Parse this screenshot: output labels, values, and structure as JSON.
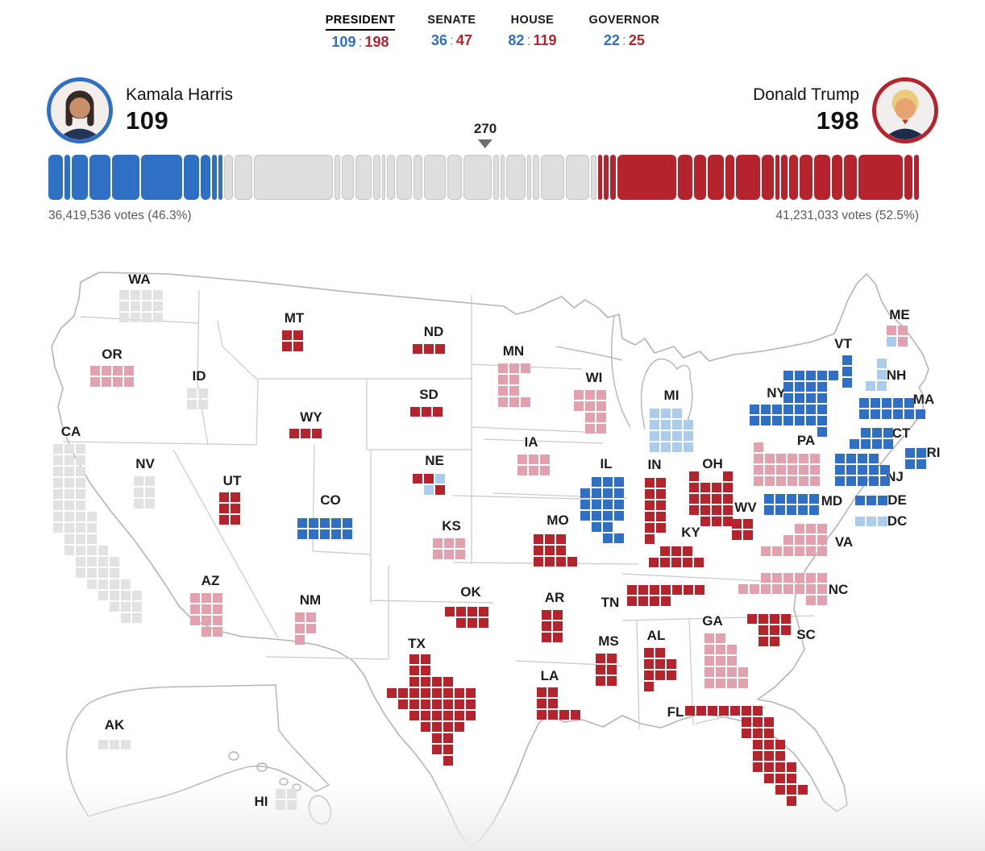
{
  "nav": {
    "tabs": [
      {
        "id": "president",
        "label": "PRESIDENT",
        "dem": "109",
        "gop": "198",
        "active": true
      },
      {
        "id": "senate",
        "label": "SENATE",
        "dem": "36",
        "gop": "47",
        "active": false
      },
      {
        "id": "house",
        "label": "HOUSE",
        "dem": "82",
        "gop": "119",
        "active": false
      },
      {
        "id": "governor",
        "label": "GOVERNOR",
        "dem": "22",
        "gop": "25",
        "active": false
      }
    ]
  },
  "candidates": {
    "dem": {
      "name": "Kamala Harris",
      "ev": "109"
    },
    "gop": {
      "name": "Donald Trump",
      "ev": "198"
    }
  },
  "bar": {
    "threshold_label": "270",
    "dem_votes": "36,419,536 votes (46.3%)",
    "gop_votes": "41,231,033 votes (52.5%)",
    "segments": [
      {
        "party": "dem",
        "ev": 10
      },
      {
        "party": "dem",
        "ev": 4
      },
      {
        "party": "dem",
        "ev": 11
      },
      {
        "party": "dem",
        "ev": 14
      },
      {
        "party": "dem",
        "ev": 19
      },
      {
        "party": "dem",
        "ev": 28
      },
      {
        "party": "dem",
        "ev": 10
      },
      {
        "party": "dem",
        "ev": 7
      },
      {
        "party": "dem",
        "ev": 3
      },
      {
        "party": "dem",
        "ev": 3
      },
      {
        "party": "none",
        "ev": 6
      },
      {
        "party": "none",
        "ev": 12
      },
      {
        "party": "none",
        "ev": 54
      },
      {
        "party": "none",
        "ev": 4
      },
      {
        "party": "none",
        "ev": 8
      },
      {
        "party": "none",
        "ev": 11
      },
      {
        "party": "none",
        "ev": 5
      },
      {
        "party": "none",
        "ev": 2
      },
      {
        "party": "none",
        "ev": 6
      },
      {
        "party": "none",
        "ev": 10
      },
      {
        "party": "none",
        "ev": 6
      },
      {
        "party": "none",
        "ev": 15
      },
      {
        "party": "none",
        "ev": 10
      },
      {
        "party": "none",
        "ev": 19
      },
      {
        "party": "none",
        "ev": 4
      },
      {
        "party": "none",
        "ev": 3
      },
      {
        "party": "none",
        "ev": 13
      },
      {
        "party": "none",
        "ev": 3
      },
      {
        "party": "none",
        "ev": 4
      },
      {
        "party": "none",
        "ev": 16
      },
      {
        "party": "none",
        "ev": 16
      },
      {
        "party": "none",
        "ev": 4
      },
      {
        "party": "gop",
        "ev": 3
      },
      {
        "party": "gop",
        "ev": 3
      },
      {
        "party": "gop",
        "ev": 4
      },
      {
        "party": "gop",
        "ev": 40
      },
      {
        "party": "gop",
        "ev": 10
      },
      {
        "party": "gop",
        "ev": 8
      },
      {
        "party": "gop",
        "ev": 11
      },
      {
        "party": "gop",
        "ev": 6
      },
      {
        "party": "gop",
        "ev": 17
      },
      {
        "party": "gop",
        "ev": 8
      },
      {
        "party": "gop",
        "ev": 3
      },
      {
        "party": "gop",
        "ev": 4
      },
      {
        "party": "gop",
        "ev": 6
      },
      {
        "party": "gop",
        "ev": 9
      },
      {
        "party": "gop",
        "ev": 11
      },
      {
        "party": "gop",
        "ev": 7
      },
      {
        "party": "gop",
        "ev": 9
      },
      {
        "party": "gop",
        "ev": 30
      },
      {
        "party": "gop",
        "ev": 6
      },
      {
        "party": "gop",
        "ev": 3
      }
    ]
  },
  "colors": {
    "dem": "#2f6fc4",
    "gop": "#b5232d",
    "dem_lean": "#abccea",
    "gop_lean": "#e2a1ae",
    "none": "#e2e2e2",
    "bar_none": "#dedede",
    "colon": "#9a9a9a"
  },
  "chart_data": {
    "type": "cartogram",
    "title": "2024 U.S. presidential election electoral college map",
    "ev_to_win": 270,
    "total_ev": 538,
    "candidates": [
      {
        "name": "Kamala Harris",
        "party": "dem",
        "electoral_votes": 109,
        "popular_votes": "36,419,536",
        "popular_pct": 46.3
      },
      {
        "name": "Donald Trump",
        "party": "gop",
        "electoral_votes": 198,
        "popular_votes": "41,231,033",
        "popular_pct": 52.5
      }
    ],
    "other_races": [
      {
        "race": "SENATE",
        "dem": 36,
        "gop": 47
      },
      {
        "race": "HOUSE",
        "dem": 82,
        "gop": 119
      },
      {
        "race": "GOVERNOR",
        "dem": 22,
        "gop": 25
      }
    ],
    "legend_note": "square colors: R=Trump win, r=Trump leading, B=Harris win, b=Harris leading, G=no result",
    "states": [
      {
        "abbr": "WA",
        "ev": 12,
        "status": "none",
        "label": [
          173,
          347
        ],
        "grid": [
          148,
          360
        ],
        "rows": [
          "GGGG",
          "GGGG",
          "GGGG"
        ]
      },
      {
        "abbr": "OR",
        "ev": 8,
        "status": "gop-lean",
        "label": [
          139,
          440
        ],
        "grid": [
          112,
          454
        ],
        "rows": [
          "rrrr",
          "rrrr"
        ]
      },
      {
        "abbr": "CA",
        "ev": 54,
        "status": "none",
        "label": [
          88,
          536
        ],
        "grid": [
          66,
          551
        ],
        "rows": [
          "GGG",
          "GGG",
          "GGG",
          "GGG",
          "GGG",
          "GGG",
          "GGGG",
          "GGGG",
          ".GGG",
          ".GGGG",
          "..GGGG",
          "..GGGG",
          "...GGGG",
          "....GGGG",
          ".....GGG",
          "......GG"
        ]
      },
      {
        "abbr": "NV",
        "ev": 6,
        "status": "none",
        "label": [
          180,
          576
        ],
        "grid": [
          166,
          591
        ],
        "rows": [
          "GG",
          "GG",
          "GG"
        ]
      },
      {
        "abbr": "ID",
        "ev": 4,
        "status": "none",
        "label": [
          247,
          467
        ],
        "grid": [
          232,
          482
        ],
        "rows": [
          "GG",
          "GG"
        ]
      },
      {
        "abbr": "MT",
        "ev": 4,
        "status": "gop",
        "label": [
          365,
          395
        ],
        "grid": [
          350,
          410
        ],
        "rows": [
          "RR",
          "RR"
        ]
      },
      {
        "abbr": "WY",
        "ev": 3,
        "status": "gop",
        "label": [
          386,
          518
        ],
        "grid": [
          359,
          532
        ],
        "rows": [
          "RRR"
        ]
      },
      {
        "abbr": "UT",
        "ev": 6,
        "status": "gop",
        "label": [
          288,
          597
        ],
        "grid": [
          272,
          611
        ],
        "rows": [
          "RR",
          "RR",
          "RR"
        ]
      },
      {
        "abbr": "AZ",
        "ev": 11,
        "status": "gop-lean",
        "label": [
          261,
          721
        ],
        "grid": [
          236,
          736
        ],
        "rows": [
          "rrr",
          "rrr",
          "rrr",
          ".rr"
        ]
      },
      {
        "abbr": "NM",
        "ev": 5,
        "status": "gop-lean",
        "label": [
          385,
          745
        ],
        "grid": [
          366,
          760
        ],
        "rows": [
          "rr",
          "rr",
          "r"
        ]
      },
      {
        "abbr": "CO",
        "ev": 10,
        "status": "dem",
        "label": [
          410,
          621
        ],
        "grid": [
          369,
          643
        ],
        "rows": [
          "BBBBB",
          "BBBBB"
        ]
      },
      {
        "abbr": "ND",
        "ev": 3,
        "status": "gop",
        "label": [
          538,
          412
        ],
        "grid": [
          512,
          427
        ],
        "rows": [
          "RRR"
        ]
      },
      {
        "abbr": "SD",
        "ev": 3,
        "status": "gop",
        "label": [
          532,
          490
        ],
        "grid": [
          509,
          505
        ],
        "rows": [
          "RRR"
        ]
      },
      {
        "abbr": "NE",
        "ev": 5,
        "status": "split",
        "label": [
          539,
          572
        ],
        "grid": [
          512,
          588
        ],
        "rows": [
          "RRb",
          ".bR"
        ]
      },
      {
        "abbr": "KS",
        "ev": 6,
        "status": "gop-lean",
        "label": [
          560,
          653
        ],
        "grid": [
          537,
          668
        ],
        "rows": [
          "rrr",
          "rrr"
        ]
      },
      {
        "abbr": "OK",
        "ev": 7,
        "status": "gop",
        "label": [
          584,
          735
        ],
        "grid": [
          552,
          753
        ],
        "rows": [
          "RRRR",
          ".RRR"
        ]
      },
      {
        "abbr": "TX",
        "ev": 40,
        "status": "gop",
        "label": [
          517,
          799
        ],
        "grid": [
          480,
          812
        ],
        "rows": [
          "..RR",
          "..RR",
          "..RRRR",
          "RRRRRRRR",
          ".RRRRRRR",
          "..RRRRRR",
          "...RRRR",
          "....RR",
          "....RR",
          ".....R"
        ]
      },
      {
        "abbr": "MN",
        "ev": 10,
        "status": "gop-lean",
        "label": [
          637,
          436
        ],
        "grid": [
          618,
          451
        ],
        "rows": [
          "rrr",
          "rr",
          "rr",
          "rrr"
        ]
      },
      {
        "abbr": "IA",
        "ev": 6,
        "status": "gop-lean",
        "label": [
          659,
          549
        ],
        "grid": [
          642,
          564
        ],
        "rows": [
          "rrr",
          "rrr"
        ]
      },
      {
        "abbr": "MO",
        "ev": 10,
        "status": "gop",
        "label": [
          692,
          646
        ],
        "grid": [
          662,
          663
        ],
        "rows": [
          "RRR",
          "RRR",
          "RRRR"
        ]
      },
      {
        "abbr": "AR",
        "ev": 6,
        "status": "gop",
        "label": [
          688,
          742
        ],
        "grid": [
          672,
          757
        ],
        "rows": [
          "RR",
          "RR",
          "RR"
        ]
      },
      {
        "abbr": "LA",
        "ev": 8,
        "status": "gop",
        "label": [
          682,
          839
        ],
        "grid": [
          666,
          853
        ],
        "rows": [
          "RR",
          "RR",
          "RRRR"
        ]
      },
      {
        "abbr": "WI",
        "ev": 10,
        "status": "gop-lean",
        "label": [
          737,
          469
        ],
        "grid": [
          712,
          484
        ],
        "rows": [
          "rrr",
          "rrr",
          ".rr",
          ".rr"
        ]
      },
      {
        "abbr": "IL",
        "ev": 19,
        "status": "dem",
        "label": [
          752,
          576
        ],
        "grid": [
          720,
          592
        ],
        "rows": [
          ".BBB",
          "BBBB",
          "BBBB",
          "BBBB",
          ".BB",
          "..BB"
        ]
      },
      {
        "abbr": "MI",
        "ev": 15,
        "status": "dem-lean",
        "label": [
          833,
          491
        ],
        "grid": [
          806,
          507
        ],
        "rows": [
          "bbb",
          "bbbb",
          "bbbb",
          "bbbb"
        ]
      },
      {
        "abbr": "IN",
        "ev": 11,
        "status": "gop",
        "label": [
          812,
          577
        ],
        "grid": [
          800,
          593
        ],
        "rows": [
          "RR",
          "RR",
          "RR",
          "RR",
          "RR",
          "R"
        ]
      },
      {
        "abbr": "OH",
        "ev": 17,
        "status": "gop",
        "label": [
          884,
          576
        ],
        "grid": [
          855,
          585
        ],
        "rows": [
          "R..R",
          "RRRR",
          "RRRR",
          "RRRR",
          ".RRR"
        ]
      },
      {
        "abbr": "KY",
        "ev": 8,
        "status": "gop",
        "label": [
          857,
          661
        ],
        "grid": [
          805,
          678
        ],
        "rows": [
          ".RRR",
          "RRRRR"
        ]
      },
      {
        "abbr": "TN",
        "ev": 11,
        "status": "gop",
        "label": [
          757,
          748
        ],
        "grid": [
          778,
          726
        ],
        "rows": [
          "RRRRRRR",
          "RRRR"
        ]
      },
      {
        "abbr": "WV",
        "ev": 4,
        "status": "gop",
        "label": [
          925,
          630
        ],
        "grid": [
          908,
          644
        ],
        "rows": [
          "RR",
          "RR"
        ]
      },
      {
        "abbr": "MS",
        "ev": 6,
        "status": "gop",
        "label": [
          755,
          796
        ],
        "grid": [
          739,
          811
        ],
        "rows": [
          "RR",
          "RR",
          "RR"
        ]
      },
      {
        "abbr": "AL",
        "ev": 9,
        "status": "gop",
        "label": [
          814,
          789
        ],
        "grid": [
          799,
          804
        ],
        "rows": [
          "RR",
          "RRR",
          "RRR",
          "R"
        ]
      },
      {
        "abbr": "GA",
        "ev": 16,
        "status": "gop-lean",
        "label": [
          884,
          771
        ],
        "grid": [
          874,
          786
        ],
        "rows": [
          "rr",
          "rrr",
          "rrr",
          "rrrr",
          "rrrr"
        ]
      },
      {
        "abbr": "FL",
        "ev": 30,
        "status": "gop",
        "label": [
          838,
          884
        ],
        "grid": [
          850,
          876
        ],
        "rows": [
          "RRRRRRR",
          ".....RRR",
          ".....RRR",
          "......RRR",
          "......RRR",
          "......RRRR",
          ".......RRR",
          "........RRR",
          ".........R"
        ]
      },
      {
        "abbr": "SC",
        "ev": 9,
        "status": "gop",
        "label": [
          1000,
          788
        ],
        "grid": [
          927,
          762
        ],
        "rows": [
          "RRRR",
          ".RRR",
          ".RR"
        ]
      },
      {
        "abbr": "NC",
        "ev": 16,
        "status": "gop-lean",
        "label": [
          1040,
          732
        ],
        "grid": [
          916,
          711
        ],
        "rows": [
          "..rrrrrr",
          "rrrrrrrr",
          "......rr"
        ]
      },
      {
        "abbr": "VA",
        "ev": 13,
        "status": "gop-lean",
        "label": [
          1047,
          673
        ],
        "grid": [
          944,
          650
        ],
        "rows": [
          "...rrr",
          "..rrrr",
          "rrrrrr"
        ]
      },
      {
        "abbr": "PA",
        "ev": 19,
        "status": "gop-lean",
        "label": [
          1000,
          547
        ],
        "grid": [
          935,
          549
        ],
        "rows": [
          "r",
          "rrrrrr",
          "rrrrrr",
          "rrrrrr"
        ]
      },
      {
        "abbr": "NY",
        "ev": 28,
        "status": "dem",
        "label": [
          963,
          488
        ],
        "grid": [
          930,
          460
        ],
        "rows": [
          "...BBBBB",
          "...BBBB",
          "...BBBB",
          "BBBBBBB",
          "BBBBBBB",
          "......B"
        ]
      },
      {
        "abbr": "VT",
        "ev": 3,
        "status": "dem",
        "label": [
          1046,
          427
        ],
        "grid": [
          1045,
          441
        ],
        "rows": [
          "B",
          "B",
          "B"
        ]
      },
      {
        "abbr": "NH",
        "ev": 4,
        "status": "dem-lean",
        "label": [
          1112,
          466
        ],
        "grid": [
          1074,
          445
        ],
        "rows": [
          ".b",
          ".b",
          "bb"
        ]
      },
      {
        "abbr": "ME",
        "ev": 4,
        "status": "split",
        "label": [
          1116,
          391
        ],
        "grid": [
          1100,
          404
        ],
        "rows": [
          "rr",
          "br"
        ]
      },
      {
        "abbr": "MA",
        "ev": 11,
        "status": "dem",
        "label": [
          1146,
          496
        ],
        "grid": [
          1066,
          494
        ],
        "rows": [
          "BBBBB",
          "BBBBBB"
        ]
      },
      {
        "abbr": "CT",
        "ev": 7,
        "status": "dem",
        "label": [
          1118,
          538
        ],
        "grid": [
          1054,
          531
        ],
        "rows": [
          ".BBB",
          "BBBB"
        ]
      },
      {
        "abbr": "RI",
        "ev": 4,
        "status": "dem",
        "label": [
          1158,
          562
        ],
        "grid": [
          1123,
          556
        ],
        "rows": [
          "BB",
          "BB"
        ]
      },
      {
        "abbr": "NJ",
        "ev": 14,
        "status": "dem",
        "label": [
          1110,
          592
        ],
        "grid": [
          1036,
          563
        ],
        "rows": [
          "BBBB",
          "BBBBB",
          "BBBBB"
        ]
      },
      {
        "abbr": "MD",
        "ev": 10,
        "status": "dem",
        "label": [
          1032,
          622
        ],
        "grid": [
          948,
          613
        ],
        "rows": [
          "BBBBB",
          "BBBBB"
        ]
      },
      {
        "abbr": "DE",
        "ev": 3,
        "status": "dem",
        "label": [
          1113,
          621
        ],
        "grid": [
          1061,
          615
        ],
        "rows": [
          "BBB"
        ]
      },
      {
        "abbr": "DC",
        "ev": 3,
        "status": "dem-lean",
        "label": [
          1113,
          647
        ],
        "grid": [
          1061,
          641
        ],
        "rows": [
          "bbb"
        ]
      },
      {
        "abbr": "AK",
        "ev": 3,
        "status": "none",
        "label": [
          142,
          900
        ],
        "grid": [
          122,
          918
        ],
        "rows": [
          "GGG"
        ]
      },
      {
        "abbr": "HI",
        "ev": 4,
        "status": "none",
        "label": [
          324,
          995
        ],
        "grid": [
          342,
          979
        ],
        "rows": [
          "GG",
          "GG"
        ]
      }
    ]
  }
}
